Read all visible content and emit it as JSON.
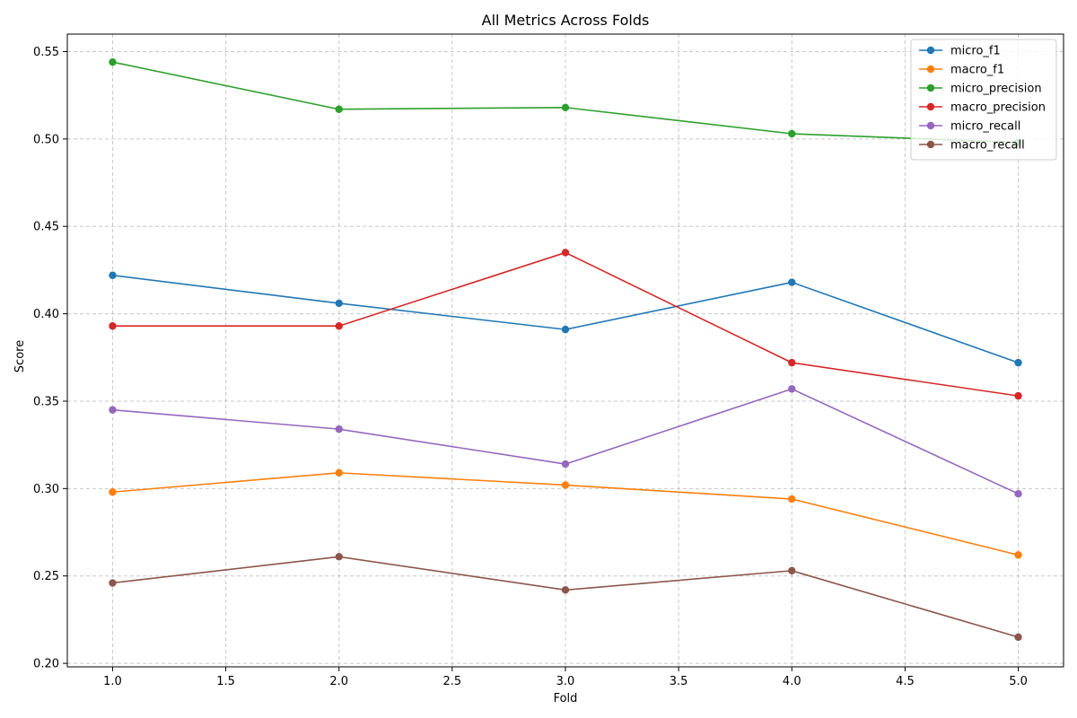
{
  "chart_data": {
    "type": "line",
    "title": "All Metrics Across Folds",
    "xlabel": "Fold",
    "ylabel": "Score",
    "xlim": [
      0.8,
      5.2
    ],
    "ylim": [
      0.198,
      0.56
    ],
    "xticks": [
      "1.0",
      "1.5",
      "2.0",
      "2.5",
      "3.0",
      "3.5",
      "4.0",
      "4.5",
      "5.0"
    ],
    "yticks": [
      "0.20",
      "0.25",
      "0.30",
      "0.35",
      "0.40",
      "0.45",
      "0.50",
      "0.55"
    ],
    "grid": true,
    "grid_style": "dashed",
    "legend_position": "top-right",
    "x": [
      1,
      2,
      3,
      4,
      5
    ],
    "series": [
      {
        "name": "micro_f1",
        "color": "#1f77b4",
        "values": [
          0.422,
          0.406,
          0.391,
          0.418,
          0.372
        ]
      },
      {
        "name": "macro_f1",
        "color": "#ff7f0e",
        "values": [
          0.298,
          0.309,
          0.302,
          0.294,
          0.262
        ]
      },
      {
        "name": "micro_precision",
        "color": "#2ca02c",
        "values": [
          0.544,
          0.517,
          0.518,
          0.503,
          0.498
        ]
      },
      {
        "name": "macro_precision",
        "color": "#d62728",
        "values": [
          0.393,
          0.393,
          0.435,
          0.372,
          0.353
        ]
      },
      {
        "name": "micro_recall",
        "color": "#9467bd",
        "values": [
          0.345,
          0.334,
          0.314,
          0.357,
          0.297
        ]
      },
      {
        "name": "macro_recall",
        "color": "#8c564b",
        "values": [
          0.246,
          0.261,
          0.242,
          0.253,
          0.215
        ]
      }
    ]
  }
}
